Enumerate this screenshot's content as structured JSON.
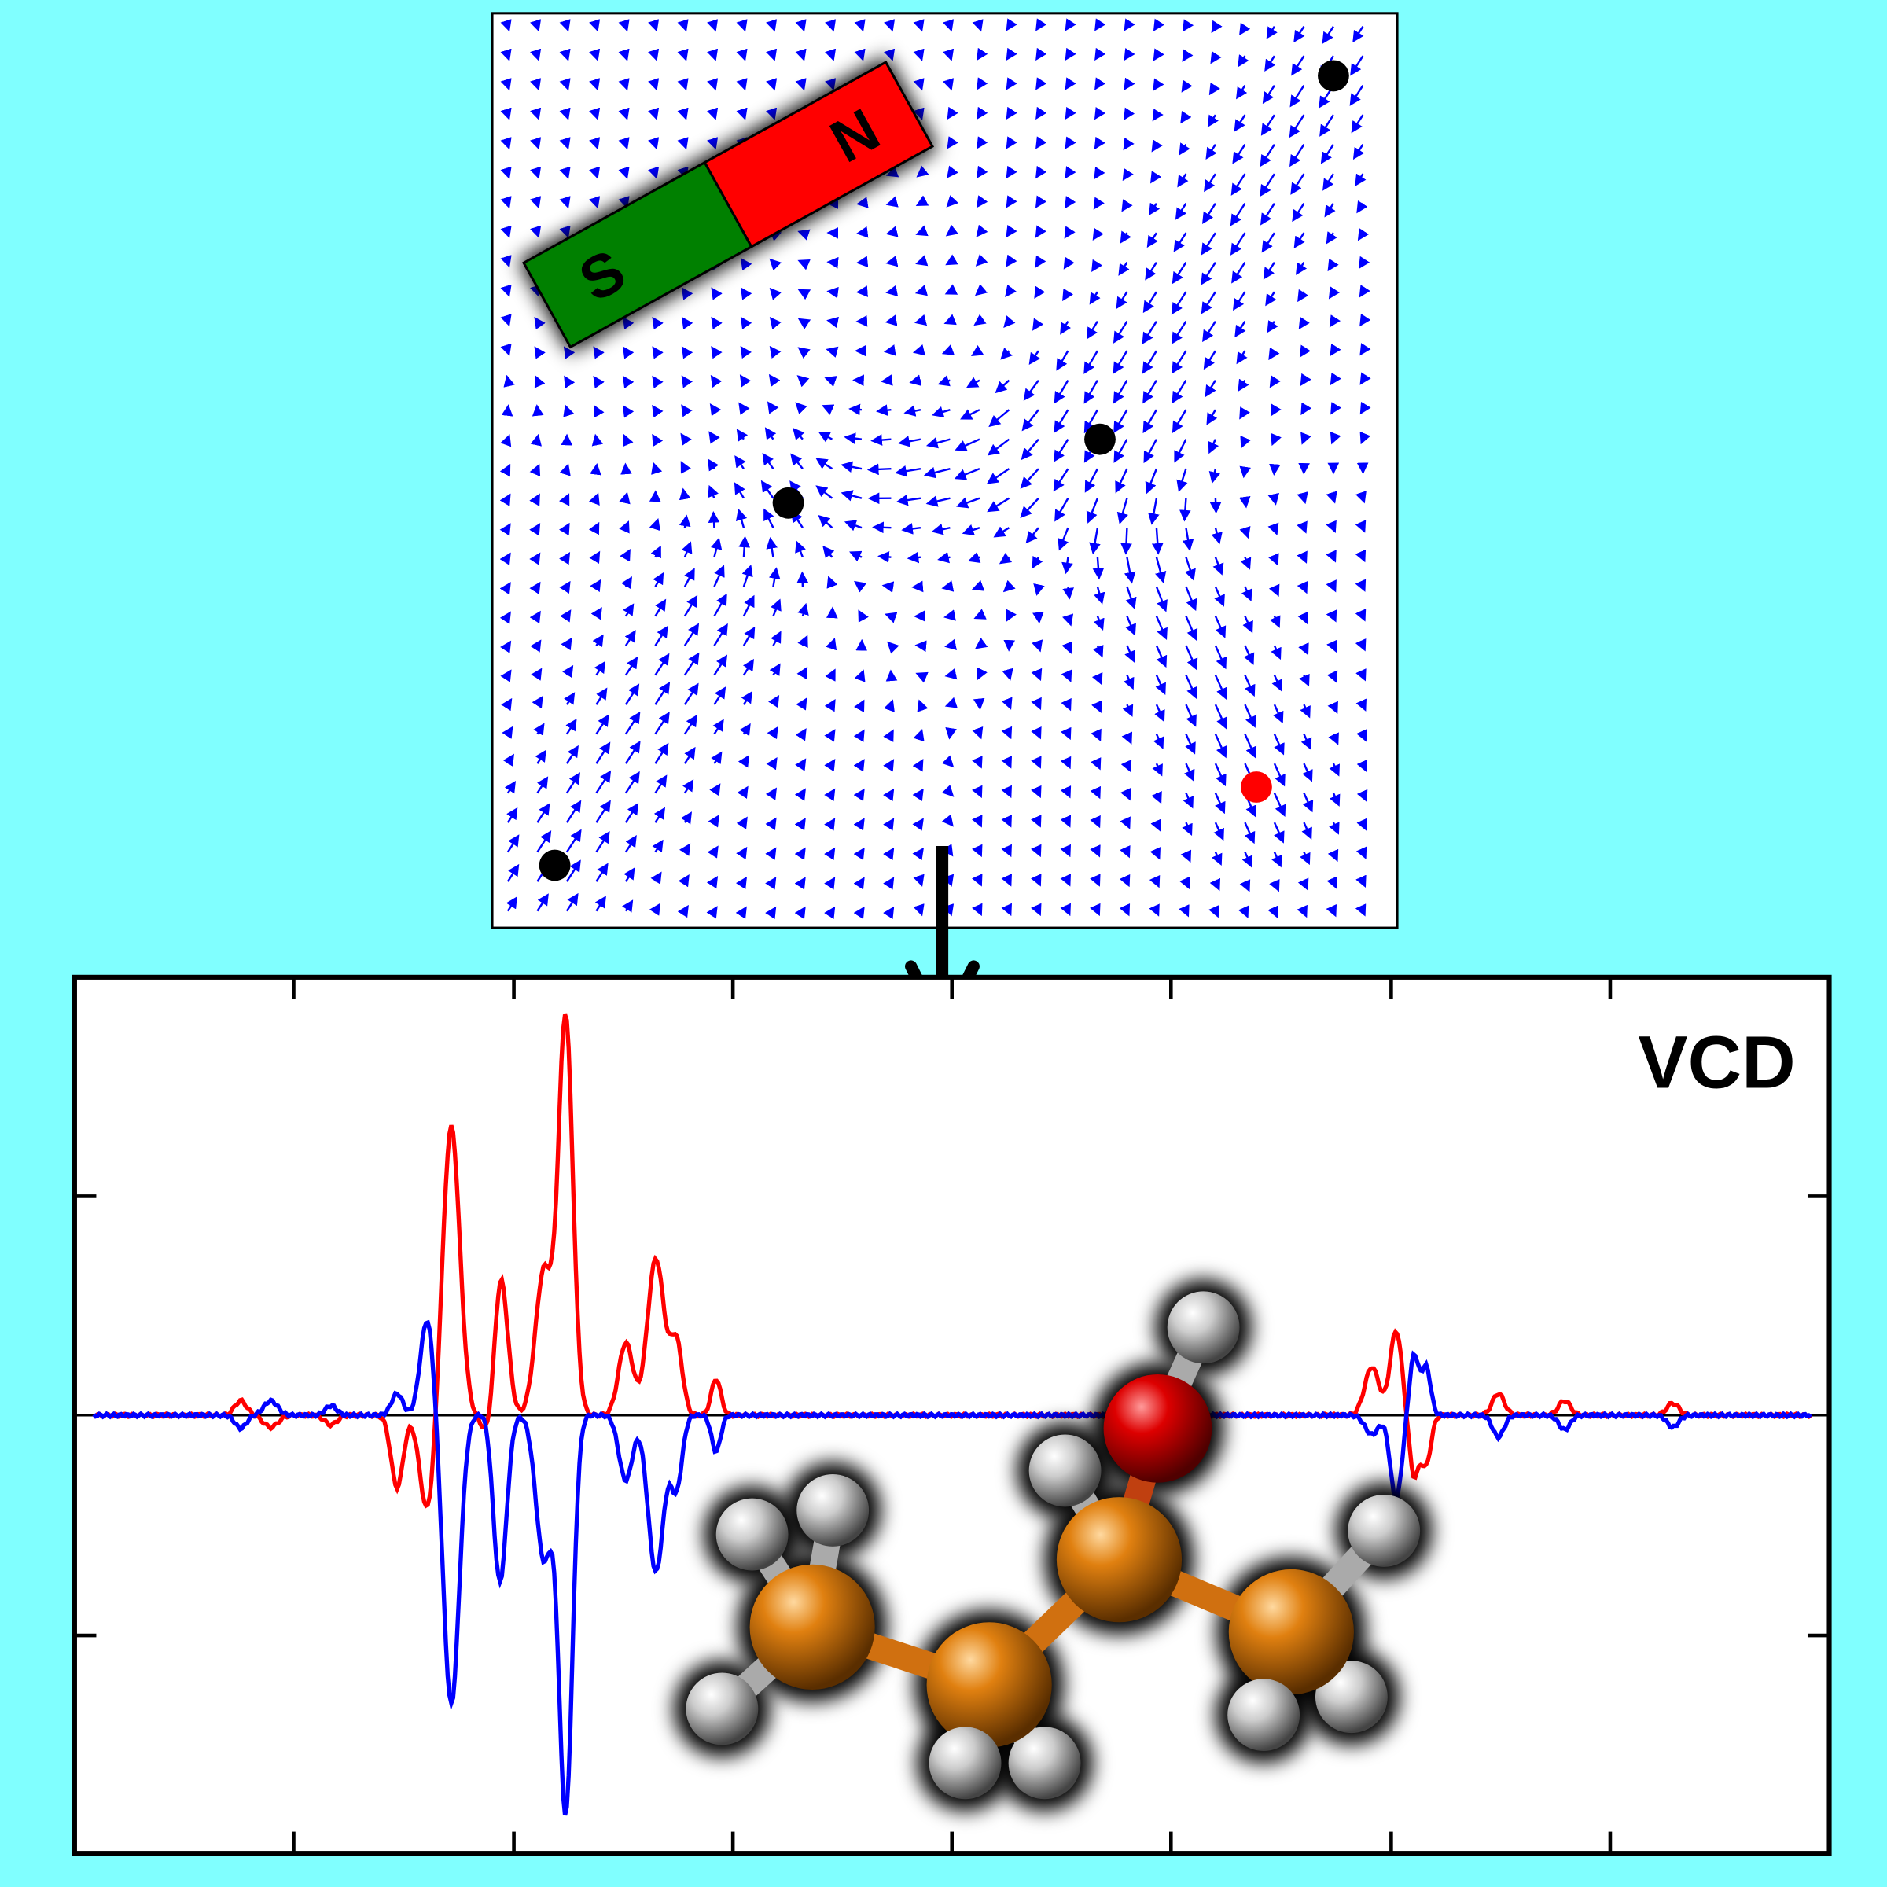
{
  "magnet": {
    "south": "S",
    "north": "N"
  },
  "spectrum": {
    "label": "VCD"
  }
}
